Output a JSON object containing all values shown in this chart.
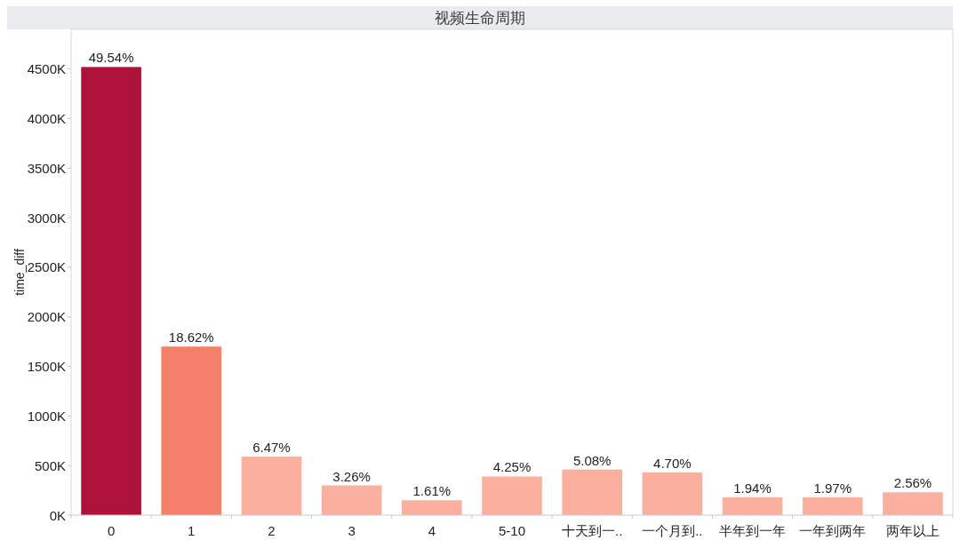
{
  "chart_data": {
    "type": "bar",
    "title": "视频生命周期",
    "ylabel": "time_diff",
    "categories": [
      "0",
      "1",
      "2",
      "3",
      "4",
      "5-10",
      "十天到一..",
      "一个月到..",
      "半年到一年",
      "一年到两年",
      "两年以上"
    ],
    "values": [
      4520,
      1700,
      590,
      300,
      150,
      390,
      460,
      430,
      180,
      180,
      230
    ],
    "colors": [
      "#ad123a",
      "#f47f6a",
      "#fbaf9f",
      "#fbaf9f",
      "#fbaf9f",
      "#fbaf9f",
      "#fbaf9f",
      "#fbaf9f",
      "#fbaf9f",
      "#fbaf9f",
      "#fbaf9f"
    ],
    "annotations": [
      {
        "text": "49.54%",
        "x": "0",
        "y": 4520
      },
      {
        "text": "18.62%",
        "x": "1",
        "y": 1700
      },
      {
        "text": "6.47%",
        "x": "2",
        "y": 590
      },
      {
        "text": "3.26%",
        "x": "3",
        "y": 300
      },
      {
        "text": "1.61%",
        "x": "4",
        "y": 150
      },
      {
        "text": "4.25%",
        "x": "5-10",
        "y": 390
      },
      {
        "text": "5.08%",
        "x": "十天到一..",
        "y": 460
      },
      {
        "text": "4.70%",
        "x": "一个月到..",
        "y": 430
      },
      {
        "text": "1.94%",
        "x": "半年到一年",
        "y": 180
      },
      {
        "text": "1.97%",
        "x": "一年到两年",
        "y": 180
      },
      {
        "text": "2.56%",
        "x": "两年以上",
        "y": 230
      }
    ],
    "ylim": [
      0,
      4900
    ],
    "yticks": [
      {
        "value": 0,
        "label": "0K"
      },
      {
        "value": 500,
        "label": "500K"
      },
      {
        "value": 1000,
        "label": "1000K"
      },
      {
        "value": 1500,
        "label": "1500K"
      },
      {
        "value": 2000,
        "label": "2000K"
      },
      {
        "value": 2500,
        "label": "2500K"
      },
      {
        "value": 3000,
        "label": "3000K"
      },
      {
        "value": 3500,
        "label": "3500K"
      },
      {
        "value": 4000,
        "label": "4000K"
      },
      {
        "value": 4500,
        "label": "4500K"
      }
    ]
  }
}
